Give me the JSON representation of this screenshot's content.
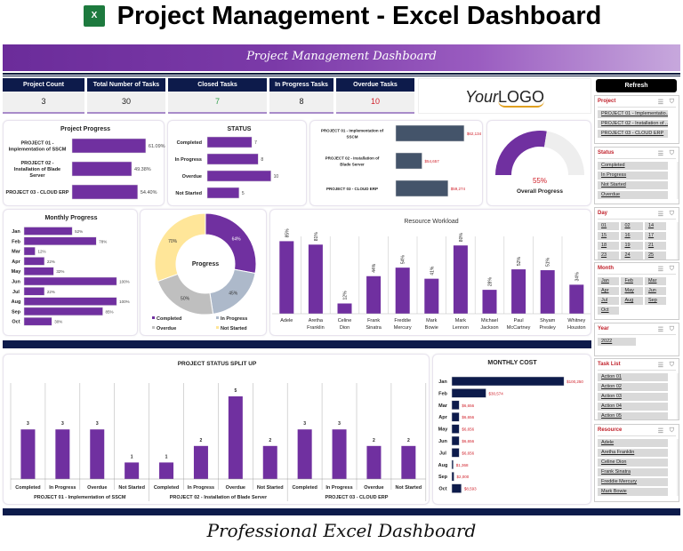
{
  "header": {
    "title": "Project Management - Excel Dashboard",
    "icon": "excel-icon",
    "icon_text": "X",
    "banner": "Project Management Dashboard",
    "footer": "Professional Excel Dashboard",
    "logo_a": "Your",
    "logo_b": "LOGO"
  },
  "kpis": [
    {
      "label": "Project Count",
      "value": "3",
      "color": "#222222"
    },
    {
      "label": "Total Number of Tasks",
      "value": "30",
      "color": "#222222"
    },
    {
      "label": "Closed Tasks",
      "value": "7",
      "color": "#2e9e4a"
    },
    {
      "label": "In Progress Tasks",
      "value": "8",
      "color": "#222222"
    },
    {
      "label": "Overdue Tasks",
      "value": "10",
      "color": "#d0202a"
    }
  ],
  "colors": {
    "purple": "#7030a0",
    "navy": "#0d1b4b",
    "slate": "#44546a",
    "grey": "#bfbfbf",
    "blue": "#adb9ca",
    "yellow": "#ffe699",
    "red": "#d0202a"
  },
  "refresh": "Refresh",
  "chart_data": [
    {
      "id": "project-progress",
      "type": "bar",
      "orientation": "horizontal",
      "title": "Project Progress",
      "categories": [
        "PROJECT 01 - Implementation of SSCM",
        "PROJECT 02 - Installation of Blade Server",
        "PROJECT 03 - CLOUD ERP"
      ],
      "values": [
        61.09,
        49.38,
        54.4
      ],
      "labels": [
        "61.09%",
        "49.38%",
        "54.40%"
      ],
      "xlim": [
        0,
        70
      ]
    },
    {
      "id": "status",
      "type": "bar",
      "orientation": "horizontal",
      "title": "STATUS",
      "categories": [
        "Completed",
        "In Progress",
        "Overdue",
        "Not Started"
      ],
      "values": [
        7,
        8,
        10,
        5
      ],
      "labels": [
        "7",
        "8",
        "10",
        "5"
      ],
      "xlim": [
        0,
        12
      ]
    },
    {
      "id": "project-cost",
      "type": "bar",
      "orientation": "horizontal",
      "title": "",
      "categories": [
        "PROJECT 01 - Implementation of SSCM",
        "PROJECT 02 - Installation of Blade Server",
        "PROJECT 03 - CLOUD ERP"
      ],
      "values": [
        62134,
        54657,
        59274
      ],
      "labels": [
        "$62,134",
        "$54,657",
        "$59,274"
      ],
      "xlim": [
        50000,
        65000
      ]
    },
    {
      "id": "overall-progress",
      "type": "gauge",
      "title": "Overall Progress",
      "value": 55,
      "label": "55%"
    },
    {
      "id": "monthly-progress",
      "type": "bar",
      "orientation": "horizontal",
      "title": "Monthly Progress",
      "categories": [
        "Jan",
        "Feb",
        "Mar",
        "Apr",
        "May",
        "Jun",
        "Jul",
        "Aug",
        "Sep",
        "Oct"
      ],
      "values": [
        52,
        78,
        12,
        22,
        32,
        100,
        22,
        100,
        85,
        30
      ],
      "labels": [
        "52%",
        "78%",
        "12%",
        "22%",
        "32%",
        "100%",
        "22%",
        "100%",
        "85%",
        "30%"
      ],
      "xlim": [
        0,
        120
      ]
    },
    {
      "id": "progress-donut",
      "type": "pie",
      "title": "Progress",
      "categories": [
        "Completed",
        "In Progress",
        "Overdue",
        "Not Started"
      ],
      "values": [
        64,
        45,
        50,
        70
      ],
      "labels": [
        "64%",
        "45%",
        "50%",
        "70%"
      ],
      "legend": "bottom"
    },
    {
      "id": "resource-workload",
      "type": "bar",
      "title": "Resource Workload",
      "categories": [
        "Adele",
        "Aretha Franklin",
        "Celine Dion",
        "Frank Sinatra",
        "Freddie Mercury",
        "Mark Bowie",
        "Mark Lennon",
        "Michael Jackson",
        "Paul McCartney",
        "Shyam Presley",
        "Whitney Houston"
      ],
      "values": [
        85,
        81,
        12,
        44,
        54,
        41,
        80,
        28,
        52,
        51,
        34
      ],
      "labels": [
        "85%",
        "81%",
        "12%",
        "44%",
        "54%",
        "41%",
        "80%",
        "28%",
        "52%",
        "51%",
        "34%"
      ],
      "ylim": [
        0,
        100
      ]
    },
    {
      "id": "project-status-split",
      "type": "bar",
      "title": "PROJECT STATUS SPLIT UP",
      "groups": [
        "PROJECT 01 - Implementation of SSCM",
        "PROJECT 02 - Installation of Blade Server",
        "PROJECT 03 - CLOUD ERP"
      ],
      "categories": [
        "Completed",
        "In Progress",
        "Overdue",
        "Not Started"
      ],
      "values": [
        [
          3,
          3,
          3,
          1
        ],
        [
          1,
          2,
          5,
          2
        ],
        [
          3,
          3,
          2,
          2
        ]
      ],
      "ylim": [
        0,
        6
      ]
    },
    {
      "id": "monthly-cost",
      "type": "bar",
      "orientation": "horizontal",
      "title": "MONTHLY COST",
      "categories": [
        "Jan",
        "Feb",
        "Mar",
        "Apr",
        "May",
        "Jun",
        "Jul",
        "Aug",
        "Sep",
        "Oct"
      ],
      "values": [
        100250,
        30574,
        6656,
        6656,
        6656,
        6656,
        6656,
        1368,
        2000,
        8593
      ],
      "labels": [
        "$100,250",
        "$30,574",
        "$6,656",
        "$6,656",
        "$6,656",
        "$6,656",
        "$6,656",
        "$1,368",
        "$2,000",
        "$8,593"
      ],
      "xlim": [
        0,
        120000
      ]
    }
  ],
  "slicers": [
    {
      "title": "Project",
      "cols": 1,
      "scroll": false,
      "items": [
        "PROJECT 01 - Implementatio...",
        "PROJECT 02 - Installation of ...",
        "PROJECT 03 - CLOUD ERP"
      ]
    },
    {
      "title": "Status",
      "cols": 1,
      "scroll": true,
      "items": [
        "Completed",
        "In Progress",
        "Not Started",
        "Overdue"
      ]
    },
    {
      "title": "Day",
      "cols": 3,
      "scroll": true,
      "items": [
        "01",
        "02",
        "14",
        "15",
        "16",
        "17",
        "18",
        "19",
        "21",
        "23",
        "24",
        "25"
      ]
    },
    {
      "title": "Month",
      "cols": 3,
      "scroll": false,
      "items": [
        "Jan",
        "Feb",
        "Mar",
        "Apr",
        "May",
        "Jun",
        "Jul",
        "Aug",
        "Sep",
        "Oct"
      ]
    },
    {
      "title": "Year",
      "cols": 2,
      "scroll": false,
      "items": [
        "2022"
      ]
    },
    {
      "title": "Task List",
      "cols": 1,
      "scroll": true,
      "items": [
        "Action 01",
        "Action 02",
        "Action 03",
        "Action 04",
        "Action 05"
      ]
    },
    {
      "title": "Resource",
      "cols": 1,
      "scroll": true,
      "items": [
        "Adele",
        "Aretha Franklin",
        "Celine Dion",
        "Frank Sinatra",
        "Freddie Mercury",
        "Mark Bowie"
      ]
    }
  ]
}
